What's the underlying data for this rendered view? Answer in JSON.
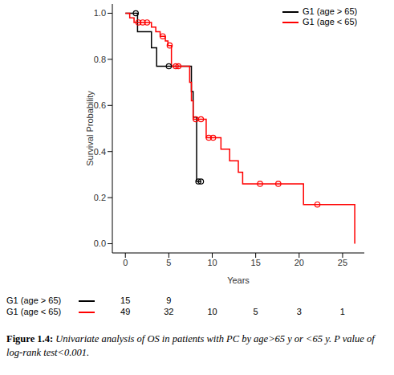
{
  "chart_data": {
    "type": "line",
    "line_style": "step",
    "marker": "circle",
    "y_label": "Survival Probability",
    "x_label": "Years",
    "xlim": [
      -1.5,
      27.5
    ],
    "ylim": [
      -0.04,
      1.04
    ],
    "xticks": [
      0,
      5,
      10,
      15,
      20,
      25
    ],
    "yticks": [
      {
        "value": 0,
        "label": "0.0"
      },
      {
        "value": 0.2,
        "label": "0.2"
      },
      {
        "value": 0.4,
        "label": "0.4"
      },
      {
        "value": 0.6,
        "label": "0.6"
      },
      {
        "value": 0.8,
        "label": "0.8"
      },
      {
        "value": 1,
        "label": "1.0"
      }
    ],
    "grid": false,
    "legend": "top right",
    "series": [
      {
        "name": "G1 (age > 65)",
        "color": "#000000",
        "x": [
          0,
          1.2,
          1.4,
          3.0,
          3.6,
          5.0,
          7.6,
          7.8,
          8.2,
          8.4,
          8.7
        ],
        "values": [
          1.0,
          1.0,
          0.92,
          0.85,
          0.77,
          0.77,
          0.66,
          0.55,
          0.27,
          0.27,
          0.27
        ],
        "censored": [
          false,
          true,
          false,
          false,
          false,
          true,
          false,
          false,
          false,
          true,
          true
        ]
      },
      {
        "name": "G1 (age < 65)",
        "color": "#ff0000",
        "x": [
          0,
          0.5,
          1.0,
          1.5,
          2.0,
          2.5,
          3.0,
          3.5,
          4.0,
          4.3,
          4.6,
          4.9,
          5.1,
          5.3,
          5.8,
          6.1,
          7.4,
          7.6,
          7.8,
          8.1,
          8.7,
          9.3,
          9.6,
          10.1,
          11.0,
          12.0,
          13.0,
          13.5,
          15.5,
          17.6,
          20.5,
          22.1,
          26.4
        ],
        "values": [
          1.0,
          0.98,
          0.96,
          0.96,
          0.96,
          0.96,
          0.94,
          0.92,
          0.9,
          0.9,
          0.88,
          0.86,
          0.86,
          0.77,
          0.77,
          0.77,
          0.7,
          0.62,
          0.54,
          0.54,
          0.54,
          0.46,
          0.46,
          0.46,
          0.41,
          0.36,
          0.31,
          0.26,
          0.26,
          0.26,
          0.17,
          0.17,
          0.0
        ],
        "censored": [
          false,
          false,
          false,
          true,
          true,
          true,
          false,
          false,
          false,
          true,
          false,
          false,
          true,
          false,
          true,
          true,
          false,
          false,
          false,
          true,
          true,
          false,
          true,
          true,
          false,
          false,
          false,
          false,
          true,
          true,
          false,
          true,
          false
        ]
      }
    ],
    "risk_table": {
      "x": [
        0,
        5,
        10,
        15,
        20,
        25
      ],
      "rows": [
        {
          "name": "G1 (age > 65)",
          "color": "#000000",
          "counts": [
            15,
            9,
            null,
            null,
            null,
            null
          ]
        },
        {
          "name": "G1 (age < 65)",
          "color": "#ff0000",
          "counts": [
            49,
            32,
            10,
            5,
            3,
            1
          ]
        }
      ]
    }
  },
  "figure": {
    "label": "Figure 1.4:",
    "caption": "Univariate analysis of OS in patients with PC by age>65 y or <65 y. P value of log-rank test<0.001."
  }
}
